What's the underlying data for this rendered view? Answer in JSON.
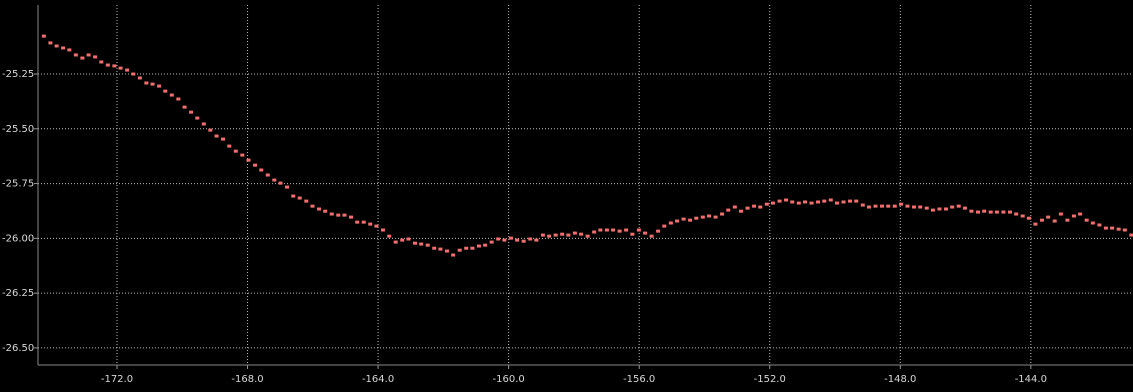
{
  "chart_data": {
    "type": "scatter",
    "color": "#f07070",
    "grid": true,
    "xlim": [
      -174.42,
      -140.87
    ],
    "ylim": [
      -26.578,
      -24.935
    ],
    "xticks": [
      {
        "value": -172,
        "label": "-172.0"
      },
      {
        "value": -168,
        "label": "-168.0"
      },
      {
        "value": -164,
        "label": "-164.0"
      },
      {
        "value": -160,
        "label": "-160.0"
      },
      {
        "value": -156,
        "label": "-156.0"
      },
      {
        "value": -152,
        "label": "-152.0"
      },
      {
        "value": -148,
        "label": "-148.0"
      },
      {
        "value": -144,
        "label": "-144.0"
      }
    ],
    "yticks": [
      -25.25,
      {
        "value": -25.5,
        "label": "-25.50"
      },
      -25.75,
      {
        "value": -26,
        "label": "-26.00"
      },
      -26.25,
      {
        "value": -26.5,
        "label": "-26.50"
      }
    ],
    "x": [
      -174.24,
      -174.04,
      -173.85,
      -173.65,
      -173.46,
      -173.26,
      -173.06,
      -172.87,
      -172.67,
      -172.48,
      -172.28,
      -172.08,
      -171.89,
      -171.69,
      -171.5,
      -171.3,
      -171.1,
      -170.91,
      -170.71,
      -170.52,
      -170.32,
      -170.12,
      -169.93,
      -169.73,
      -169.54,
      -169.34,
      -169.14,
      -168.95,
      -168.75,
      -168.56,
      -168.36,
      -168.16,
      -167.97,
      -167.77,
      -167.58,
      -167.38,
      -167.18,
      -166.99,
      -166.79,
      -166.6,
      -166.4,
      -166.2,
      -166.01,
      -165.81,
      -165.62,
      -165.42,
      -165.22,
      -165.03,
      -164.83,
      -164.64,
      -164.44,
      -164.24,
      -164.05,
      -163.85,
      -163.66,
      -163.46,
      -163.26,
      -163.07,
      -162.87,
      -162.68,
      -162.48,
      -162.28,
      -162.09,
      -161.89,
      -161.7,
      -161.5,
      -161.3,
      -161.11,
      -160.91,
      -160.72,
      -160.52,
      -160.32,
      -160.13,
      -159.93,
      -159.74,
      -159.54,
      -159.34,
      -159.15,
      -158.95,
      -158.76,
      -158.56,
      -158.36,
      -158.17,
      -157.97,
      -157.78,
      -157.58,
      -157.38,
      -157.19,
      -156.99,
      -156.8,
      -156.6,
      -156.4,
      -156.21,
      -156.01,
      -155.82,
      -155.62,
      -155.42,
      -155.23,
      -155.03,
      -154.84,
      -154.64,
      -154.44,
      -154.25,
      -154.05,
      -153.86,
      -153.66,
      -153.46,
      -153.27,
      -153.07,
      -152.88,
      -152.68,
      -152.48,
      -152.29,
      -152.09,
      -151.9,
      -151.7,
      -151.5,
      -151.31,
      -151.11,
      -150.92,
      -150.72,
      -150.52,
      -150.33,
      -150.13,
      -149.94,
      -149.74,
      -149.54,
      -149.35,
      -149.15,
      -148.96,
      -148.76,
      -148.56,
      -148.37,
      -148.17,
      -147.98,
      -147.78,
      -147.58,
      -147.39,
      -147.19,
      -147.0,
      -146.8,
      -146.6,
      -146.41,
      -146.21,
      -146.02,
      -145.82,
      -145.62,
      -145.43,
      -145.23,
      -145.04,
      -144.84,
      -144.64,
      -144.45,
      -144.25,
      -144.06,
      -143.86,
      -143.66,
      -143.47,
      -143.27,
      -143.08,
      -142.88,
      -142.68,
      -142.49,
      -142.29,
      -142.1,
      -141.9,
      -141.7,
      -141.51,
      -141.31,
      -141.12,
      -140.92
    ],
    "values": [
      -25.077,
      -25.108,
      -25.122,
      -25.131,
      -25.14,
      -25.163,
      -25.177,
      -25.163,
      -25.172,
      -25.195,
      -25.209,
      -25.213,
      -25.223,
      -25.232,
      -25.25,
      -25.268,
      -25.291,
      -25.296,
      -25.305,
      -25.328,
      -25.346,
      -25.364,
      -25.401,
      -25.424,
      -25.451,
      -25.478,
      -25.506,
      -25.533,
      -25.547,
      -25.579,
      -25.602,
      -25.62,
      -25.643,
      -25.666,
      -25.688,
      -25.711,
      -25.734,
      -25.748,
      -25.766,
      -25.807,
      -25.816,
      -25.83,
      -25.853,
      -25.866,
      -25.876,
      -25.889,
      -25.894,
      -25.894,
      -25.903,
      -25.926,
      -25.926,
      -25.935,
      -25.944,
      -25.962,
      -25.99,
      -26.017,
      -26.008,
      -26.003,
      -26.022,
      -26.026,
      -26.031,
      -26.045,
      -26.049,
      -26.058,
      -26.076,
      -26.054,
      -26.045,
      -26.045,
      -26.035,
      -26.031,
      -26.017,
      -26.003,
      -26.008,
      -25.999,
      -26.008,
      -26.013,
      -26.003,
      -26.008,
      -25.985,
      -25.99,
      -25.985,
      -25.981,
      -25.985,
      -25.976,
      -25.981,
      -25.99,
      -25.971,
      -25.962,
      -25.962,
      -25.962,
      -25.967,
      -25.962,
      -25.981,
      -25.962,
      -25.976,
      -25.99,
      -25.967,
      -25.944,
      -25.93,
      -25.921,
      -25.912,
      -25.917,
      -25.908,
      -25.903,
      -25.898,
      -25.903,
      -25.889,
      -25.871,
      -25.857,
      -25.876,
      -25.862,
      -25.853,
      -25.857,
      -25.844,
      -25.839,
      -25.83,
      -25.825,
      -25.834,
      -25.839,
      -25.834,
      -25.839,
      -25.834,
      -25.83,
      -25.825,
      -25.839,
      -25.834,
      -25.83,
      -25.83,
      -25.848,
      -25.857,
      -25.853,
      -25.853,
      -25.853,
      -25.853,
      -25.844,
      -25.853,
      -25.857,
      -25.857,
      -25.862,
      -25.871,
      -25.866,
      -25.866,
      -25.857,
      -25.853,
      -25.862,
      -25.876,
      -25.88,
      -25.876,
      -25.88,
      -25.88,
      -25.88,
      -25.88,
      -25.889,
      -25.898,
      -25.908,
      -25.935,
      -25.917,
      -25.903,
      -25.921,
      -25.889,
      -25.917,
      -25.898,
      -25.889,
      -25.917,
      -25.93,
      -25.939,
      -25.953,
      -25.953,
      -25.958,
      -25.962,
      -25.985
    ]
  }
}
